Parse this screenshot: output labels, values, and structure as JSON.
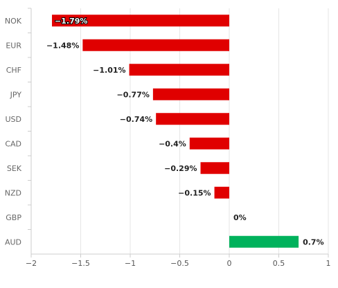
{
  "chart_data": {
    "type": "bar",
    "orientation": "horizontal",
    "title": "",
    "xlabel": "",
    "ylabel": "",
    "categories": [
      "NOK",
      "EUR",
      "CHF",
      "JPY",
      "USD",
      "CAD",
      "SEK",
      "NZD",
      "GBP",
      "AUD"
    ],
    "values": [
      -1.79,
      -1.48,
      -1.01,
      -0.77,
      -0.74,
      -0.4,
      -0.29,
      -0.15,
      0,
      0.7
    ],
    "data_labels": [
      "−1.79%",
      "−1.48%",
      "−1.01%",
      "−0.77%",
      "−0.74%",
      "−0.4%",
      "−0.29%",
      "−0.15%",
      "0%",
      "0.7%"
    ],
    "xlim": [
      -2,
      1
    ],
    "xticks": [
      -2,
      -1.5,
      -1,
      -0.5,
      0,
      0.5,
      1
    ],
    "xtick_labels": [
      "−2",
      "−1.5",
      "−1",
      "−0.5",
      "0",
      "0.5",
      "1"
    ],
    "grid": "vertical",
    "colors": {
      "negative": "#e00000",
      "positive": "#00b25c",
      "grid": "#e6e6e6",
      "axis": "#cccccc"
    }
  }
}
